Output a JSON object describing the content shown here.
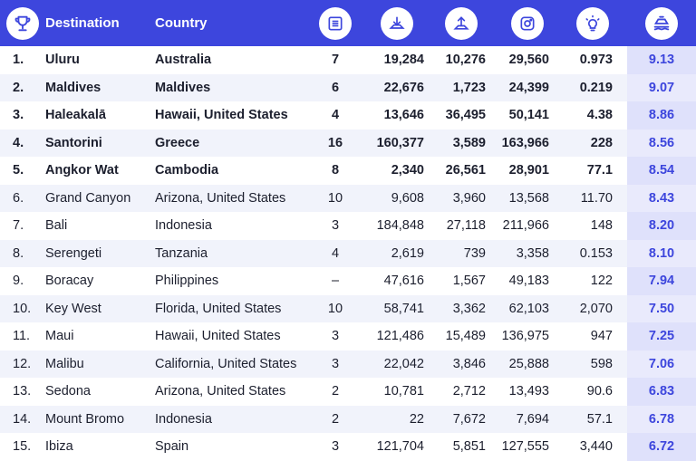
{
  "header": {
    "destination_label": "Destination",
    "country_label": "Country",
    "icons": [
      "trophy-icon",
      "list-icon",
      "download-icon",
      "upload-icon",
      "instagram-icon",
      "lightbulb-icon",
      "ship-icon"
    ]
  },
  "colors": {
    "header_bg": "#3d46dd",
    "alt_row_bg": "#f1f3fb",
    "score_text": "#3d46dd",
    "score_col_bg": "#e6e7fb"
  },
  "rows": [
    {
      "rank": "1.",
      "destination": "Uluru",
      "country": "Australia",
      "c1": "7",
      "c2": "19,284",
      "c3": "10,276",
      "c4": "29,560",
      "c5": "0.973",
      "score": "9.13"
    },
    {
      "rank": "2.",
      "destination": "Maldives",
      "country": "Maldives",
      "c1": "6",
      "c2": "22,676",
      "c3": "1,723",
      "c4": "24,399",
      "c5": "0.219",
      "score": "9.07"
    },
    {
      "rank": "3.",
      "destination": "Haleakalā",
      "country": "Hawaii, United States",
      "c1": "4",
      "c2": "13,646",
      "c3": "36,495",
      "c4": "50,141",
      "c5": "4.38",
      "score": "8.86"
    },
    {
      "rank": "4.",
      "destination": "Santorini",
      "country": "Greece",
      "c1": "16",
      "c2": "160,377",
      "c3": "3,589",
      "c4": "163,966",
      "c5": "228",
      "score": "8.56"
    },
    {
      "rank": "5.",
      "destination": "Angkor Wat",
      "country": "Cambodia",
      "c1": "8",
      "c2": "2,340",
      "c3": "26,561",
      "c4": "28,901",
      "c5": "77.1",
      "score": "8.54"
    },
    {
      "rank": "6.",
      "destination": "Grand Canyon",
      "country": "Arizona, United States",
      "c1": "10",
      "c2": "9,608",
      "c3": "3,960",
      "c4": "13,568",
      "c5": "11.70",
      "score": "8.43"
    },
    {
      "rank": "7.",
      "destination": "Bali",
      "country": "Indonesia",
      "c1": "3",
      "c2": "184,848",
      "c3": "27,118",
      "c4": "211,966",
      "c5": "148",
      "score": "8.20"
    },
    {
      "rank": "8.",
      "destination": "Serengeti",
      "country": "Tanzania",
      "c1": "4",
      "c2": "2,619",
      "c3": "739",
      "c4": "3,358",
      "c5": "0.153",
      "score": "8.10"
    },
    {
      "rank": "9.",
      "destination": "Boracay",
      "country": "Philippines",
      "c1": "–",
      "c2": "47,616",
      "c3": "1,567",
      "c4": "49,183",
      "c5": "122",
      "score": "7.94"
    },
    {
      "rank": "10.",
      "destination": "Key West",
      "country": "Florida, United States",
      "c1": "10",
      "c2": "58,741",
      "c3": "3,362",
      "c4": "62,103",
      "c5": "2,070",
      "score": "7.50"
    },
    {
      "rank": "11.",
      "destination": "Maui",
      "country": "Hawaii, United States",
      "c1": "3",
      "c2": "121,486",
      "c3": "15,489",
      "c4": "136,975",
      "c5": "947",
      "score": "7.25"
    },
    {
      "rank": "12.",
      "destination": "Malibu",
      "country": "California, United States",
      "c1": "3",
      "c2": "22,042",
      "c3": "3,846",
      "c4": "25,888",
      "c5": "598",
      "score": "7.06"
    },
    {
      "rank": "13.",
      "destination": "Sedona",
      "country": "Arizona, United States",
      "c1": "2",
      "c2": "10,781",
      "c3": "2,712",
      "c4": "13,493",
      "c5": "90.6",
      "score": "6.83"
    },
    {
      "rank": "14.",
      "destination": "Mount Bromo",
      "country": "Indonesia",
      "c1": "2",
      "c2": "22",
      "c3": "7,672",
      "c4": "7,694",
      "c5": "57.1",
      "score": "6.78"
    },
    {
      "rank": "15.",
      "destination": "Ibiza",
      "country": "Spain",
      "c1": "3",
      "c2": "121,704",
      "c3": "5,851",
      "c4": "127,555",
      "c5": "3,440",
      "score": "6.72"
    }
  ]
}
